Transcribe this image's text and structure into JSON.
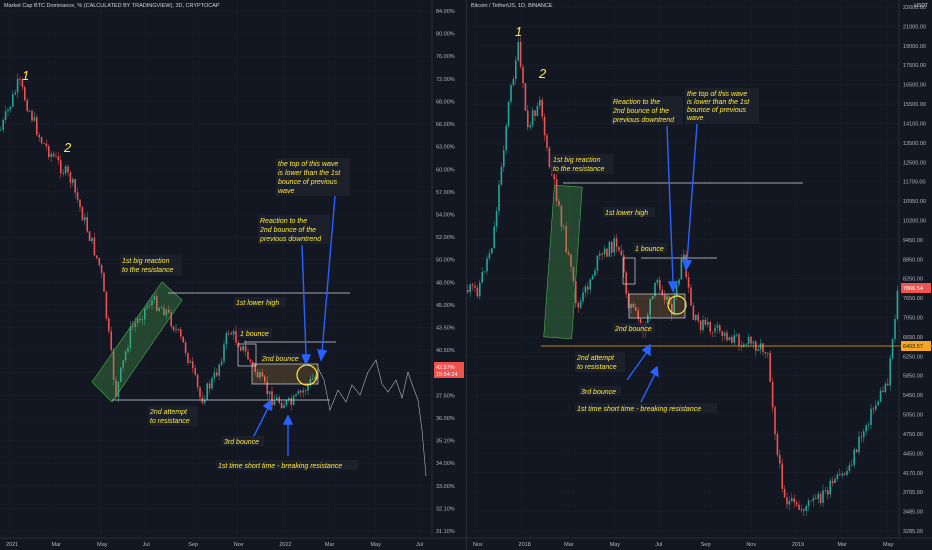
{
  "left": {
    "title": "Market Cap BTC Dominance, % (CALCULATED BY TRADINGVIEW), 3D, CRYPTOCAP",
    "y_ticks": [
      "84.00%",
      "80.00%",
      "76.00%",
      "72.00%",
      "68.00%",
      "66.00%",
      "63.00%",
      "60.00%",
      "57.00%",
      "54.00%",
      "52.00%",
      "50.00%",
      "48.00%",
      "45.00%",
      "43.50%",
      "40.50%",
      "39.00%",
      "37.50%",
      "36.00%",
      "35.10%",
      "34.00%",
      "33.00%",
      "32.10%",
      "31.10%"
    ],
    "x_ticks": [
      "2021",
      "Mar",
      "May",
      "Jul",
      "Sep",
      "Nov",
      "2022",
      "Mar",
      "May",
      "Jul"
    ],
    "price_label": "42.57%",
    "price_sub": "15:54:24",
    "waves": [
      "1",
      "2"
    ],
    "notes": {
      "big_reaction": [
        "1st big reaction",
        "to the resistance"
      ],
      "lower_high": "1st lower high",
      "bounce1": "1 bounce",
      "bounce2": "2nd bounce",
      "attempt": [
        "2nd attempt",
        "to resistance"
      ],
      "bounce3": "3rd bounce",
      "short_time": "1st time short time - breaking resistance",
      "reaction2": [
        "Reaction to the",
        "2nd bounce of the",
        "previous downtrend"
      ],
      "top_wave": [
        "the top of this wave",
        "is lower than the 1st",
        "bounce of previous",
        "wave"
      ]
    }
  },
  "right": {
    "title": "Bitcoin / TetherUS, 1D, BINANCE",
    "currency": "USDT",
    "y_ticks": [
      "22000.00",
      "21000.00",
      "19000.00",
      "17500.00",
      "16500.00",
      "15500.00",
      "14100.00",
      "13500.00",
      "12500.00",
      "11700.00",
      "10950.00",
      "10200.00",
      "9450.00",
      "8850.00",
      "8250.00",
      "7650.00",
      "7050.00",
      "6650.00",
      "6250.00",
      "5850.00",
      "5450.00",
      "5050.00",
      "4750.00",
      "4450.00",
      "4170.00",
      "3705.00",
      "3485.00",
      "3285.00"
    ],
    "x_ticks": [
      "Nov",
      "2018",
      "Mar",
      "May",
      "Jul",
      "Sep",
      "Nov",
      "2019",
      "Mar",
      "May"
    ],
    "price_label": "7866.54",
    "level_label": "6403.57",
    "waves": [
      "1",
      "2"
    ],
    "notes": {
      "big_reaction": [
        "1st big reaction",
        "to the resistance"
      ],
      "lower_high": "1st lower high",
      "bounce1": "1 bounce",
      "bounce2": "2nd bounce",
      "attempt": [
        "2nd attempt",
        "to resistance"
      ],
      "bounce3": "3rd bounce",
      "short_time": "1st time short time - breaking resistance",
      "reaction2": [
        "Reaction to the",
        "2nd bounce of the",
        "previous downtrend"
      ],
      "top_wave": [
        "the top of this wave",
        "is lower than the 1st",
        "bounce of previous",
        "wave"
      ]
    }
  },
  "colors": {
    "up": "#26a69a",
    "down": "#ef5350",
    "note": "#ffeb3b",
    "arrow": "#2962ff",
    "level": "#f5a623",
    "bg": "#131722"
  }
}
